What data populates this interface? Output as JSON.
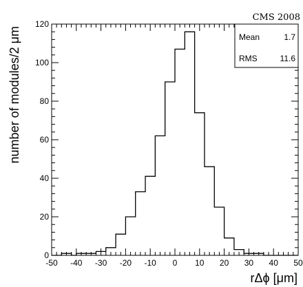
{
  "header": {
    "label": "CMS 2008"
  },
  "stats": {
    "mean_label": "Mean",
    "mean_value": "1.7",
    "rms_label": "RMS",
    "rms_value": "11.6"
  },
  "chart_data": {
    "type": "bar",
    "xlabel": "rΔϕ [μm]",
    "ylabel": "number of modules/2 μm",
    "xlim": [
      -50,
      50
    ],
    "ylim": [
      0,
      120
    ],
    "x_ticks": [
      "-50",
      "-40",
      "-30",
      "-20",
      "-10",
      "0",
      "10",
      "20",
      "30",
      "40",
      "50"
    ],
    "y_ticks": [
      "0",
      "20",
      "40",
      "60",
      "80",
      "100",
      "120"
    ],
    "bin_width": 2,
    "bin_lower_edges": [
      -50,
      -48,
      -46,
      -44,
      -42,
      -40,
      -38,
      -36,
      -34,
      -32,
      -30,
      -28,
      -26,
      -24,
      -22,
      -20,
      -18,
      -16,
      -14,
      -12,
      -10,
      -8,
      -6,
      -4,
      -2,
      0,
      2,
      4,
      6,
      8,
      10,
      12,
      14,
      16,
      18,
      20,
      22,
      24,
      26,
      28,
      30,
      32,
      34,
      36,
      38,
      40,
      42,
      44,
      46,
      48
    ],
    "values": [
      0,
      0,
      1,
      1,
      0,
      1,
      1,
      1,
      1,
      2,
      2,
      4,
      4,
      11,
      11,
      20,
      20,
      33,
      33,
      41,
      41,
      62,
      62,
      90,
      90,
      107,
      107,
      116,
      116,
      74,
      74,
      46,
      46,
      25,
      25,
      9,
      9,
      3,
      3,
      1,
      1,
      1,
      1,
      0,
      0,
      0,
      0,
      0,
      0,
      0
    ],
    "grid": false
  }
}
